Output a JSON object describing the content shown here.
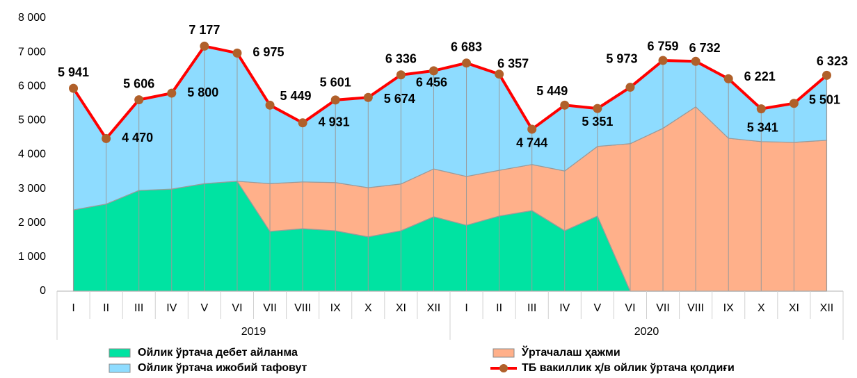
{
  "chart_data": {
    "type": "area",
    "groups": [
      {
        "name": "2019",
        "categories": [
          "I",
          "II",
          "III",
          "IV",
          "V",
          "VI",
          "VII",
          "VIII",
          "IX",
          "X",
          "XI",
          "XII"
        ]
      },
      {
        "name": "2020",
        "categories": [
          "I",
          "II",
          "III",
          "IV",
          "V",
          "VI",
          "VII",
          "VIII",
          "IX",
          "X",
          "XI",
          "XII"
        ]
      }
    ],
    "ylim": [
      0,
      8000
    ],
    "yticks": [
      0,
      {
        "value": 1000,
        "label": "1 000"
      },
      {
        "value": 2000,
        "label": "2 000"
      },
      {
        "value": 3000,
        "label": "3 000"
      },
      {
        "value": 4000,
        "label": "4 000"
      },
      {
        "value": 5000,
        "label": "5 000"
      },
      {
        "value": 6000,
        "label": "6 000"
      },
      {
        "value": 7000,
        "label": "7 000"
      },
      {
        "value": 8000,
        "label": "8 000"
      }
    ],
    "grid": false,
    "legend": "bottom",
    "series": [
      {
        "name": "Ойлик ўртача дебет айланма",
        "type": "area",
        "color": "#00e3a2",
        "values": [
          2380,
          2550,
          2950,
          2990,
          3150,
          3220,
          1750,
          1830,
          1770,
          1590,
          1770,
          2180,
          1930,
          2200,
          2360,
          1770,
          2200,
          0,
          0,
          0,
          0,
          0,
          0,
          0
        ]
      },
      {
        "name": "Ўртачалаш ҳажми",
        "type": "area",
        "color": "#ffb08a",
        "values": [
          0,
          0,
          0,
          0,
          0,
          0,
          1400,
          1370,
          1410,
          1440,
          1370,
          1400,
          1430,
          1340,
          1350,
          1750,
          2040,
          4320,
          4770,
          5400,
          4480,
          4380,
          4360,
          4420
        ]
      },
      {
        "name": "Ойлик ўртача ижобий тафовут",
        "type": "area",
        "color": "#8edcff",
        "values": [
          3561,
          1920,
          2656,
          2810,
          4027,
          3755,
          2299,
          1731,
          2421,
          2644,
          3196,
          2876,
          3323,
          2817,
          1034,
          1929,
          1111,
          1653,
          1989,
          1332,
          1741,
          961,
          1141,
          1903
        ]
      },
      {
        "name": "ТБ вакиллик ҳ/в ойлик ўртача қолдиғи",
        "type": "line",
        "color": "#ff0000",
        "marker_color": "#b0602a",
        "values": [
          5941,
          4470,
          5606,
          5800,
          7177,
          6975,
          5449,
          4931,
          5601,
          5674,
          6336,
          6456,
          6683,
          6357,
          4744,
          5449,
          5351,
          5973,
          6759,
          6732,
          6221,
          5341,
          5501,
          6323
        ],
        "value_labels": [
          "5 941",
          "4 470",
          "5 606",
          "5 800",
          "7 177",
          "6 975",
          "5 449",
          "4 931",
          "5 601",
          "5 674",
          "6 336",
          "6 456",
          "6 683",
          "6 357",
          "4 744",
          "5 449",
          "5 351",
          "5 973",
          "6 759",
          "6 732",
          "6 221",
          "5 341",
          "5 501",
          "6 323"
        ]
      }
    ]
  }
}
